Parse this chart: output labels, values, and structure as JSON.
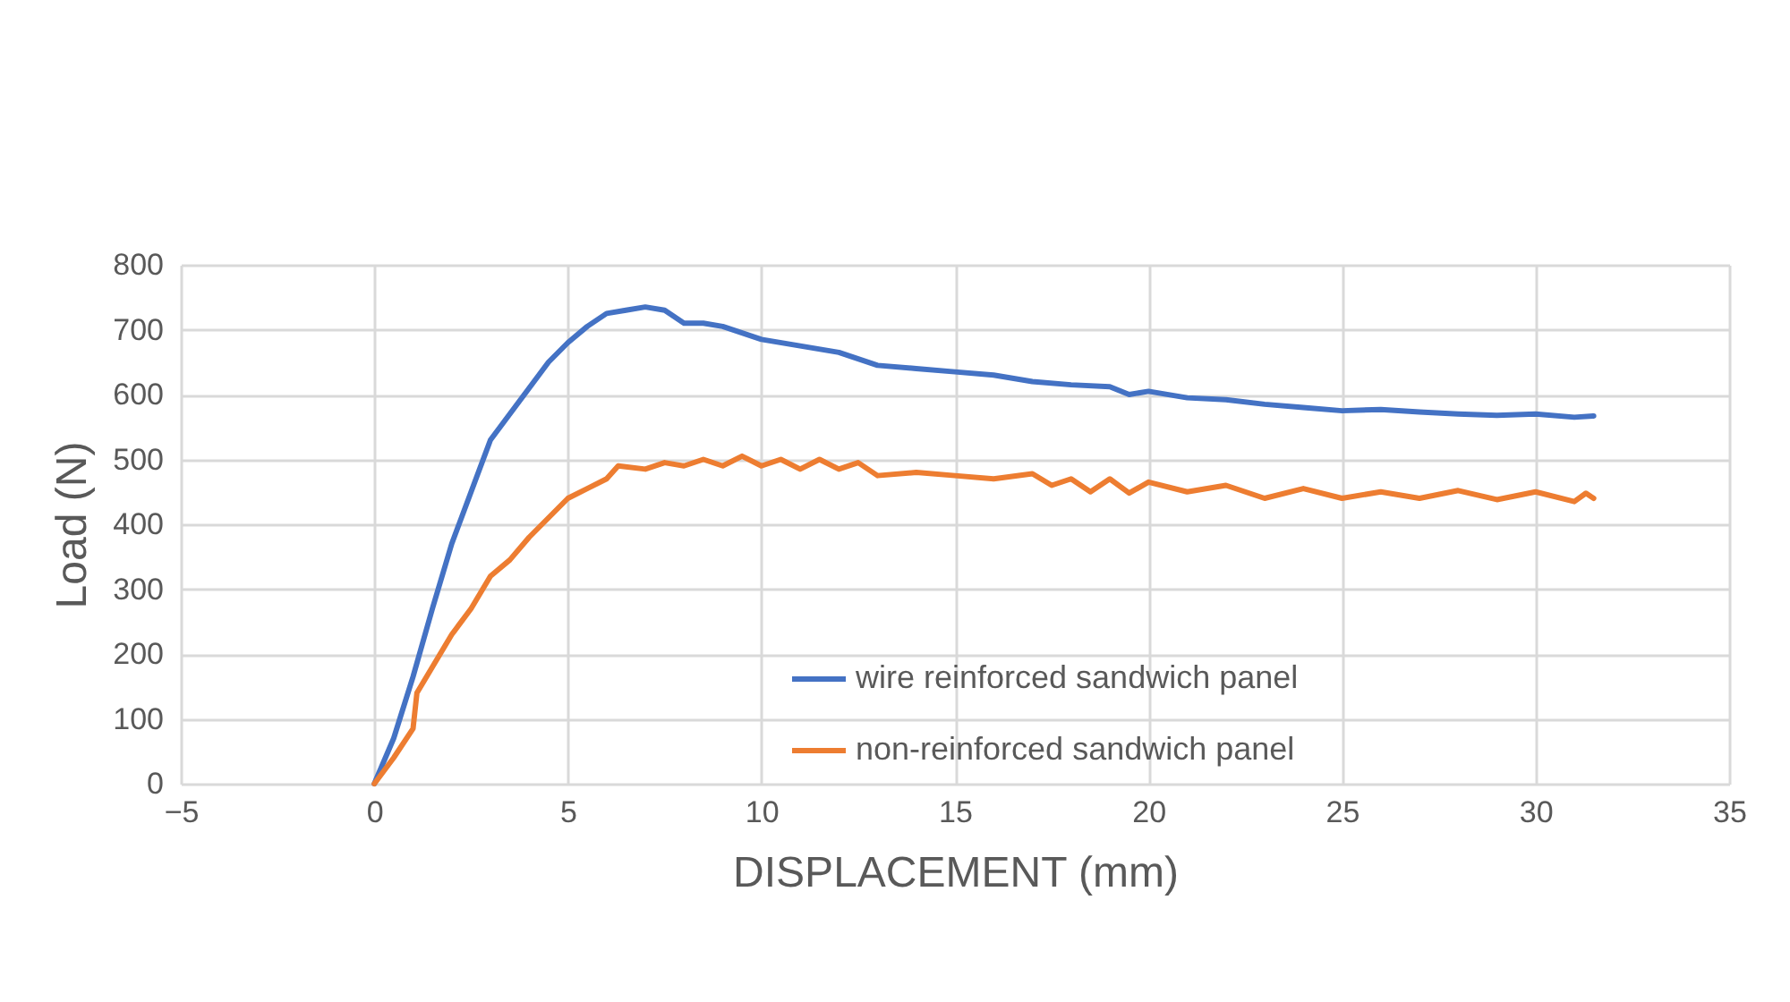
{
  "chart_data": {
    "type": "line",
    "xlabel": "DISPLACEMENT (mm)",
    "ylabel": "Load (N)",
    "xlim": [
      -5,
      35
    ],
    "xticks": [
      -5,
      0,
      5,
      10,
      15,
      20,
      25,
      30,
      35
    ],
    "ylim": [
      0,
      800
    ],
    "yticks": [
      0,
      100,
      200,
      300,
      400,
      500,
      600,
      700,
      800
    ],
    "grid": true,
    "legend": "bottom",
    "marker": "none",
    "line_style": "solid",
    "series": [
      {
        "name": "wire reinforced sandwich panel",
        "color": "#4472c4",
        "x": [
          0,
          0.5,
          1,
          1.5,
          2,
          2.5,
          3,
          3.5,
          4,
          4.5,
          5,
          5.5,
          6,
          6.5,
          7,
          7.5,
          8,
          8.5,
          9,
          10,
          11,
          12,
          13,
          14,
          15,
          16,
          17,
          18,
          19,
          19.5,
          20,
          21,
          22,
          23,
          24,
          25,
          26,
          27,
          28,
          29,
          30,
          31,
          31.5
        ],
        "values": [
          0,
          70,
          165,
          270,
          370,
          450,
          530,
          570,
          610,
          650,
          680,
          705,
          725,
          730,
          735,
          730,
          710,
          710,
          705,
          685,
          675,
          665,
          645,
          640,
          635,
          630,
          620,
          615,
          612,
          600,
          605,
          595,
          592,
          585,
          580,
          575,
          577,
          573,
          570,
          568,
          570,
          565,
          567
        ]
      },
      {
        "name": "non-reinforced sandwich panel",
        "color": "#ed7d31",
        "x": [
          0,
          0.5,
          1,
          1.1,
          1.5,
          2,
          2.5,
          3,
          3.5,
          4,
          4.5,
          5,
          5.5,
          6,
          6.3,
          7,
          7.5,
          8,
          8.5,
          9,
          9.5,
          10,
          10.5,
          11,
          11.5,
          12,
          12.5,
          13,
          14,
          15,
          16,
          17,
          17.5,
          18,
          18.5,
          19,
          19.5,
          20,
          21,
          22,
          23,
          24,
          25,
          26,
          27,
          28,
          29,
          30,
          31,
          31.3,
          31.5
        ],
        "values": [
          0,
          40,
          85,
          140,
          180,
          230,
          270,
          320,
          345,
          380,
          410,
          440,
          455,
          470,
          490,
          485,
          495,
          490,
          500,
          490,
          505,
          490,
          500,
          485,
          500,
          485,
          495,
          475,
          480,
          475,
          470,
          478,
          460,
          470,
          450,
          470,
          448,
          465,
          450,
          460,
          440,
          455,
          440,
          450,
          440,
          452,
          438,
          450,
          435,
          448,
          440
        ]
      }
    ]
  }
}
